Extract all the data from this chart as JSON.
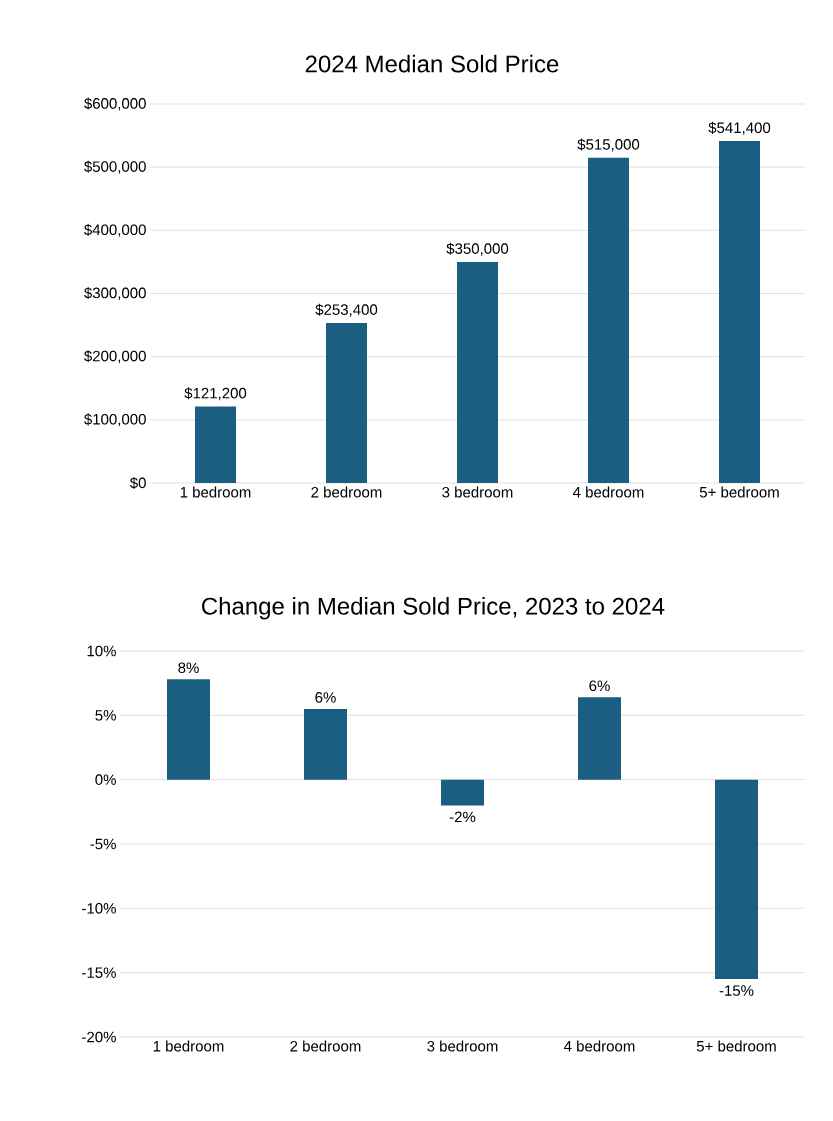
{
  "chart_data": [
    {
      "type": "bar",
      "title": "2024 Median Sold Price",
      "categories": [
        "1 bedroom",
        "2 bedroom",
        "3 bedroom",
        "4 bedroom",
        "5+ bedroom"
      ],
      "values": [
        121200,
        253400,
        350000,
        515000,
        541400
      ],
      "value_labels": [
        "$121,200",
        "$253,400",
        "$350,000",
        "$515,000",
        "$541,400"
      ],
      "color": "#1a5f82",
      "ylim": [
        0,
        600000
      ],
      "yticks": [
        {
          "value": 0,
          "label": "$0"
        },
        {
          "value": 100000,
          "label": "$100,000"
        },
        {
          "value": 200000,
          "label": "$200,000"
        },
        {
          "value": 300000,
          "label": "$300,000"
        },
        {
          "value": 400000,
          "label": "$400,000"
        },
        {
          "value": 500000,
          "label": "$500,000"
        },
        {
          "value": 600000,
          "label": "$600,000"
        }
      ],
      "grid": "y"
    },
    {
      "type": "bar",
      "title": "Change in Median Sold Price, 2023 to 2024",
      "categories": [
        "1 bedroom",
        "2 bedroom",
        "3 bedroom",
        "4 bedroom",
        "5+ bedroom"
      ],
      "values": [
        7.8,
        5.5,
        -2.0,
        6.4,
        -15.5
      ],
      "value_labels": [
        "8%",
        "6%",
        "-2%",
        "6%",
        "-15%"
      ],
      "color": "#1a5f82",
      "ylim": [
        -20,
        10
      ],
      "yticks": [
        {
          "value": -20,
          "label": "-20%"
        },
        {
          "value": -15,
          "label": "-15%"
        },
        {
          "value": -10,
          "label": "-10%"
        },
        {
          "value": -5,
          "label": "-5%"
        },
        {
          "value": 0,
          "label": "0%"
        },
        {
          "value": 5,
          "label": "5%"
        },
        {
          "value": 10,
          "label": "10%"
        }
      ],
      "grid": "y"
    }
  ]
}
